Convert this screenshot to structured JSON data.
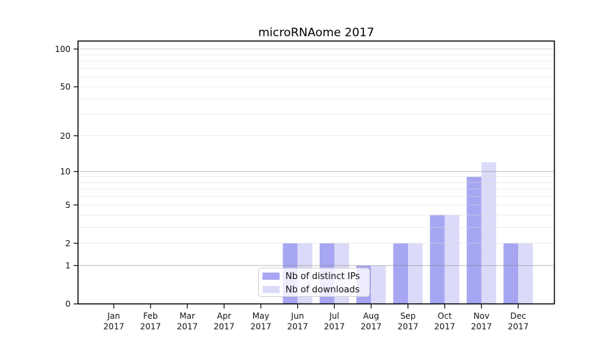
{
  "chart_data": {
    "type": "bar",
    "title": "microRNAome 2017",
    "categories": [
      "Jan 2017",
      "Feb 2017",
      "Mar 2017",
      "Apr 2017",
      "May 2017",
      "Jun 2017",
      "Jul 2017",
      "Aug 2017",
      "Sep 2017",
      "Oct 2017",
      "Nov 2017",
      "Dec 2017"
    ],
    "series": [
      {
        "name": "Nb of distinct IPs",
        "color": "#a6a6f2",
        "values": [
          0,
          0,
          0,
          0,
          0,
          2,
          2,
          1,
          2,
          4,
          9,
          2
        ]
      },
      {
        "name": "Nb of downloads",
        "color": "#dbdbf9",
        "values": [
          0,
          0,
          0,
          0,
          0,
          2,
          2,
          1,
          2,
          4,
          12,
          2
        ]
      }
    ],
    "xlabel": "",
    "ylabel": "",
    "y_axis": {
      "scale": "log1p",
      "tick_labels": [
        "0",
        "1",
        "2",
        "5",
        "10",
        "20",
        "50",
        "100"
      ],
      "tick_values": [
        0,
        1,
        2,
        5,
        10,
        20,
        50,
        100
      ],
      "ylim": [
        0,
        116
      ],
      "major_gridlines": [
        1,
        10
      ],
      "mid_gridlines": [
        100
      ],
      "minor_gridlines": [
        2,
        3,
        4,
        5,
        6,
        7,
        8,
        9,
        20,
        30,
        40,
        50,
        60,
        70,
        80,
        90
      ]
    },
    "legend": {
      "position": "bottom-center",
      "entries": [
        "Nb of distinct IPs",
        "Nb of downloads"
      ]
    },
    "grid": true
  },
  "colors": {
    "bar_distinct_ips": "#a6a6f2",
    "bar_downloads": "#dbdbf9",
    "grid_major": "#b9b9b9",
    "grid_minor": "#ebebeb",
    "axis": "#000000",
    "background": "#ffffff"
  }
}
